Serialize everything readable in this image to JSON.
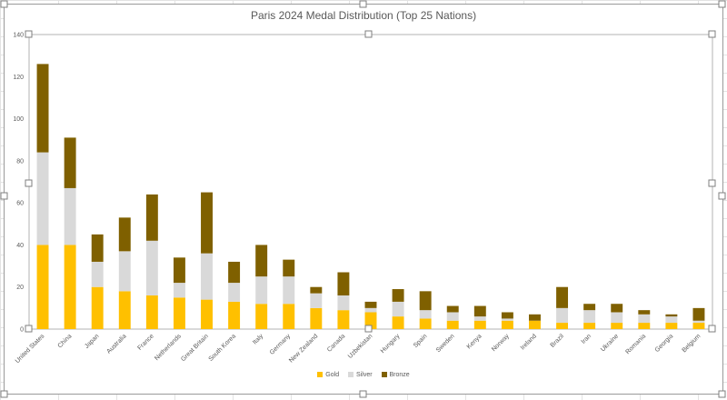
{
  "chart_data": {
    "type": "bar",
    "stacked": true,
    "title": "Paris 2024 Medal Distribution (Top 25 Nations)",
    "xlabel": "",
    "ylabel": "",
    "ylim": [
      0,
      140
    ],
    "yticks": [
      0,
      20,
      40,
      60,
      80,
      100,
      120,
      140
    ],
    "grid": false,
    "legend_position": "bottom",
    "categories": [
      "United States",
      "China",
      "Japan",
      "Australia",
      "France",
      "Netherlands",
      "Great Britain",
      "South Korea",
      "Italy",
      "Germany",
      "New Zealand",
      "Canada",
      "Uzbekistan",
      "Hungary",
      "Spain",
      "Sweden",
      "Kenya",
      "Norway",
      "Ireland",
      "Brazil",
      "Iran",
      "Ukraine",
      "Romania",
      "Georgia",
      "Belgium"
    ],
    "series": [
      {
        "name": "Gold",
        "color": "#ffc000",
        "values": [
          40,
          40,
          20,
          18,
          16,
          15,
          14,
          13,
          12,
          12,
          10,
          9,
          8,
          6,
          5,
          4,
          4,
          4,
          4,
          3,
          3,
          3,
          3,
          3,
          3
        ]
      },
      {
        "name": "Silver",
        "color": "#d9d9d9",
        "values": [
          44,
          27,
          12,
          19,
          26,
          7,
          22,
          9,
          13,
          13,
          7,
          7,
          2,
          7,
          4,
          4,
          2,
          1,
          0,
          7,
          6,
          5,
          4,
          3,
          1
        ]
      },
      {
        "name": "Bronze",
        "color": "#7f6000",
        "values": [
          42,
          24,
          13,
          16,
          22,
          12,
          29,
          10,
          15,
          8,
          3,
          11,
          3,
          6,
          9,
          3,
          5,
          3,
          3,
          10,
          3,
          4,
          2,
          1,
          6
        ]
      }
    ]
  }
}
